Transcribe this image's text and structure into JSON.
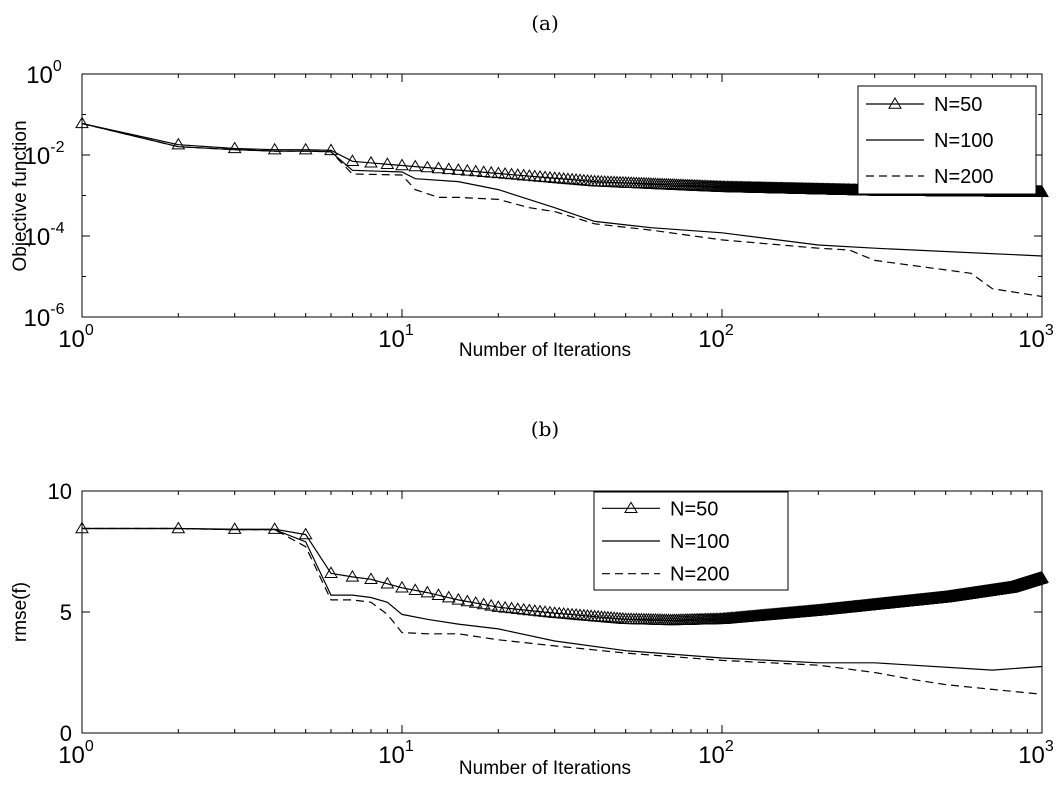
{
  "chart_data": [
    {
      "type": "line",
      "panel_label": "(a)",
      "xlabel": "Number of Iterations",
      "ylabel": "Objective function",
      "xscale": "log",
      "yscale": "log",
      "xlim": [
        1,
        1000
      ],
      "ylim": [
        1e-06,
        1
      ],
      "x_ticks": [
        {
          "value": 1,
          "base": "10",
          "exp": "0"
        },
        {
          "value": 10,
          "base": "10",
          "exp": "1"
        },
        {
          "value": 100,
          "base": "10",
          "exp": "2"
        },
        {
          "value": 1000,
          "base": "10",
          "exp": "3"
        }
      ],
      "y_ticks": [
        {
          "value": 1,
          "base": "10",
          "exp": "0"
        },
        {
          "value": 0.01,
          "base": "10",
          "exp": "-2"
        },
        {
          "value": 0.0001,
          "base": "10",
          "exp": "-4"
        },
        {
          "value": 1e-06,
          "base": "10",
          "exp": "-6"
        }
      ],
      "legend": "top-right",
      "series": [
        {
          "name": "N=50",
          "style": "solid-triangle",
          "x": [
            1,
            2,
            3,
            4,
            5,
            6,
            7,
            10,
            20,
            40,
            100,
            300,
            1000
          ],
          "y": [
            0.06,
            0.018,
            0.0145,
            0.0135,
            0.0135,
            0.013,
            0.007,
            0.0055,
            0.0035,
            0.0022,
            0.0016,
            0.0013,
            0.0012
          ]
        },
        {
          "name": "N=100",
          "style": "solid",
          "x": [
            1,
            2,
            3,
            4,
            5,
            6,
            7,
            10,
            11,
            15,
            20,
            30,
            40,
            60,
            100,
            200,
            300,
            1000
          ],
          "y": [
            0.06,
            0.016,
            0.0135,
            0.0125,
            0.0125,
            0.012,
            0.0042,
            0.0038,
            0.0026,
            0.0022,
            0.0014,
            0.0005,
            0.00023,
            0.00016,
            0.00012,
            6e-05,
            5e-05,
            3.2e-05
          ]
        },
        {
          "name": "N=200",
          "style": "dashed",
          "x": [
            1,
            2,
            3,
            4,
            5,
            6,
            7,
            10,
            11,
            13,
            15,
            20,
            25,
            30,
            40,
            60,
            100,
            200,
            250,
            300,
            600,
            700,
            1000
          ],
          "y": [
            0.06,
            0.016,
            0.0135,
            0.0125,
            0.0125,
            0.012,
            0.0034,
            0.0032,
            0.0014,
            0.0009,
            0.0009,
            0.0008,
            0.0005,
            0.0004,
            0.0002,
            0.00014,
            8e-05,
            5e-05,
            4.5e-05,
            2.5e-05,
            1.2e-05,
            5e-06,
            3.2e-06
          ]
        }
      ]
    },
    {
      "type": "line",
      "panel_label": "(b)",
      "xlabel": "Number of Iterations",
      "ylabel": "rmse(f)",
      "xscale": "log",
      "yscale": "linear",
      "xlim": [
        1,
        1000
      ],
      "ylim": [
        0,
        10
      ],
      "x_ticks": [
        {
          "value": 1,
          "base": "10",
          "exp": "0"
        },
        {
          "value": 10,
          "base": "10",
          "exp": "1"
        },
        {
          "value": 100,
          "base": "10",
          "exp": "2"
        },
        {
          "value": 1000,
          "base": "10",
          "exp": "3"
        }
      ],
      "y_ticks": [
        {
          "value": 0,
          "label": "0"
        },
        {
          "value": 5,
          "label": "5"
        },
        {
          "value": 10,
          "label": "10"
        }
      ],
      "legend": "top-center",
      "series": [
        {
          "name": "N=50",
          "style": "solid-triangle",
          "x": [
            1,
            2,
            3,
            4,
            5,
            6,
            7,
            8,
            10,
            12,
            15,
            20,
            30,
            50,
            70,
            100,
            200,
            500,
            800,
            1000
          ],
          "y": [
            8.45,
            8.45,
            8.42,
            8.42,
            8.2,
            6.6,
            6.45,
            6.35,
            6.0,
            5.8,
            5.5,
            5.2,
            4.95,
            4.7,
            4.65,
            4.7,
            5.05,
            5.6,
            6.0,
            6.4
          ]
        },
        {
          "name": "N=100",
          "style": "solid",
          "x": [
            1,
            2,
            3,
            4,
            5,
            6,
            7,
            8,
            9,
            10,
            12,
            15,
            20,
            30,
            50,
            100,
            200,
            300,
            700,
            1000
          ],
          "y": [
            8.45,
            8.45,
            8.4,
            8.4,
            7.9,
            5.7,
            5.7,
            5.6,
            5.4,
            4.9,
            4.7,
            4.5,
            4.3,
            3.8,
            3.4,
            3.1,
            2.9,
            2.9,
            2.6,
            2.75
          ]
        },
        {
          "name": "N=200",
          "style": "dashed",
          "x": [
            1,
            2,
            3,
            4,
            5,
            6,
            7,
            8,
            9,
            10,
            12,
            15,
            20,
            30,
            50,
            100,
            200,
            300,
            400,
            500,
            700,
            1000
          ],
          "y": [
            8.45,
            8.45,
            8.4,
            8.4,
            7.7,
            5.5,
            5.5,
            5.4,
            4.9,
            4.15,
            4.1,
            4.1,
            3.85,
            3.6,
            3.3,
            3.0,
            2.8,
            2.5,
            2.2,
            2.0,
            1.8,
            1.6
          ]
        }
      ]
    }
  ]
}
